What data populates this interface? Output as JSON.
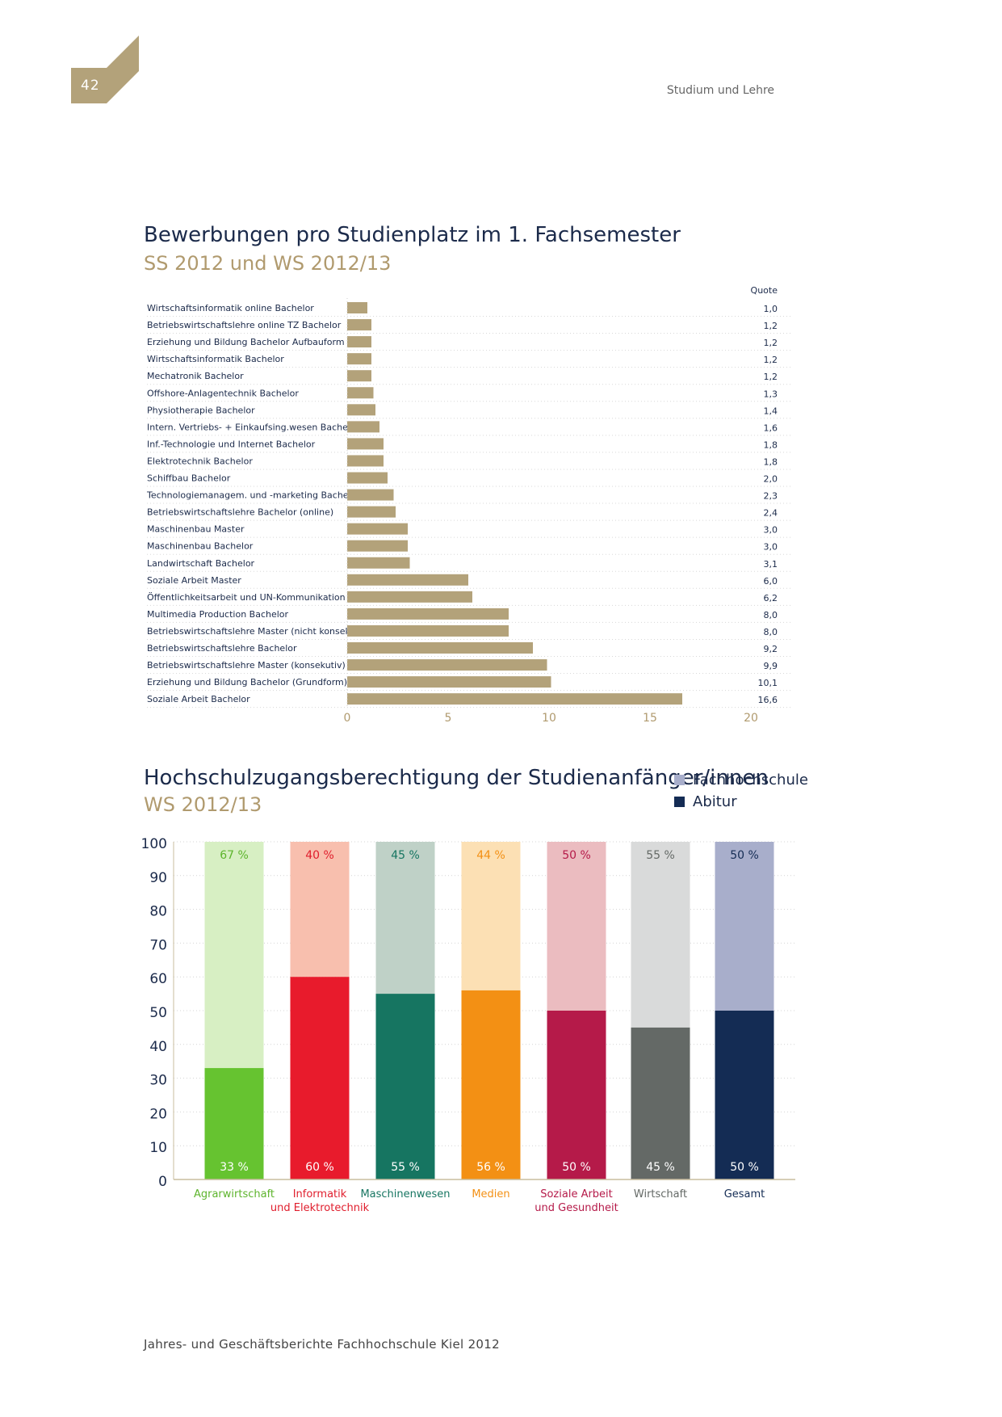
{
  "header": {
    "page_number": "42",
    "section": "Studium und Lehre"
  },
  "colors": {
    "gold": "#b09a6e",
    "navy": "#1b2a4a"
  },
  "footer": {
    "text": "Jahres- und Geschäftsberichte Fachhochschule Kiel 2012"
  },
  "legend": {
    "items": [
      {
        "label": "Fachhochschule",
        "color": "#a8aecb"
      },
      {
        "label": "Abitur",
        "color": "#142c54"
      }
    ]
  },
  "chart_data": [
    {
      "type": "bar",
      "orientation": "horizontal",
      "title": "Bewerbungen pro Studienplatz im 1. Fachsemester",
      "subtitle": "SS 2012 und WS 2012/13",
      "value_column_label": "Quote",
      "xlim": [
        0,
        20
      ],
      "xticks": [
        "0",
        "5",
        "10",
        "15",
        "20"
      ],
      "grid": true,
      "bar_color": "#b3a27a",
      "categories": [
        "Wirtschaftsinformatik online Bachelor",
        "Betriebswirtschaftslehre online TZ Bachelor",
        "Erziehung und Bildung Bachelor Aufbauform",
        "Wirtschaftsinformatik Bachelor",
        "Mechatronik Bachelor",
        "Offshore-Anlagentechnik Bachelor",
        "Physiotherapie Bachelor",
        "Intern. Vertriebs- + Einkaufsing.wesen Bachelor",
        "Inf.-Technologie und Internet Bachelor",
        "Elektrotechnik Bachelor",
        "Schiffbau Bachelor",
        "Technologiemanagem. und -marketing Bachelor",
        "Betriebswirtschaftslehre Bachelor (online)",
        "Maschinenbau Master",
        "Maschinenbau Bachelor",
        "Landwirtschaft Bachelor",
        "Soziale Arbeit Master",
        "Öffentlichkeitsarbeit und UN-Kommunikation BA",
        "Multimedia Production Bachelor",
        "Betriebswirtschaftslehre Master (nicht konsek.)",
        "Betriebswirtschaftslehre Bachelor",
        "Betriebswirtschaftslehre Master (konsekutiv)",
        "Erziehung und Bildung Bachelor (Grundform)",
        "Soziale Arbeit Bachelor"
      ],
      "values": [
        1.0,
        1.2,
        1.2,
        1.2,
        1.2,
        1.3,
        1.4,
        1.6,
        1.8,
        1.8,
        2.0,
        2.3,
        2.4,
        3.0,
        3.0,
        3.1,
        6.0,
        6.2,
        8.0,
        8.0,
        9.2,
        9.9,
        10.1,
        16.6
      ],
      "value_labels": [
        "1,0",
        "1,2",
        "1,2",
        "1,2",
        "1,2",
        "1,3",
        "1,4",
        "1,6",
        "1,8",
        "1,8",
        "2,0",
        "2,3",
        "2,4",
        "3,0",
        "3,0",
        "3,1",
        "6,0",
        "6,2",
        "8,0",
        "8,0",
        "9,2",
        "9,9",
        "10,1",
        "16,6"
      ]
    },
    {
      "type": "bar",
      "stacked": true,
      "title": "Hochschulzugangsberechtigung der Studienanfänger/innen",
      "subtitle": "WS 2012/13",
      "ylim": [
        0,
        100
      ],
      "yticks": [
        "0",
        "10",
        "20",
        "30",
        "40",
        "50",
        "60",
        "70",
        "80",
        "90",
        "100"
      ],
      "grid": true,
      "legend_position": "top-right",
      "categories": [
        {
          "lines": [
            "Agrarwirtschaft"
          ],
          "abitur": 33,
          "fachhochschule": 67,
          "dark": "#66c330",
          "light": "#d7efc3",
          "label_color": "#5db42c",
          "top_text": "#5db42c",
          "bottom_text": "#ffffff"
        },
        {
          "lines": [
            "Informatik",
            "und Elektrotechnik"
          ],
          "abitur": 60,
          "fachhochschule": 40,
          "dark": "#e81b2c",
          "light": "#f8bfae",
          "label_color": "#e01d2c",
          "top_text": "#e01d2c",
          "bottom_text": "#ffffff"
        },
        {
          "lines": [
            "Maschinenwesen"
          ],
          "abitur": 55,
          "fachhochschule": 45,
          "dark": "#167561",
          "light": "#bfd1c7",
          "label_color": "#167561",
          "top_text": "#167561",
          "bottom_text": "#ffffff"
        },
        {
          "lines": [
            "Medien"
          ],
          "abitur": 56,
          "fachhochschule": 44,
          "dark": "#f39014",
          "light": "#fce0b4",
          "label_color": "#f39014",
          "top_text": "#f39014",
          "bottom_text": "#ffffff"
        },
        {
          "lines": [
            "Soziale Arbeit",
            "und Gesundheit"
          ],
          "abitur": 50,
          "fachhochschule": 50,
          "dark": "#b51a49",
          "light": "#ebbcc0",
          "label_color": "#b51a49",
          "top_text": "#b51a49",
          "bottom_text": "#ffffff"
        },
        {
          "lines": [
            "Wirtschaft"
          ],
          "abitur": 45,
          "fachhochschule": 55,
          "dark": "#646966",
          "light": "#d9dada",
          "label_color": "#646966",
          "top_text": "#646966",
          "bottom_text": "#ffffff"
        },
        {
          "lines": [
            "Gesamt"
          ],
          "abitur": 50,
          "fachhochschule": 50,
          "dark": "#142c54",
          "light": "#a8aecb",
          "label_color": "#142c54",
          "top_text": "#142c54",
          "bottom_text": "#ffffff"
        }
      ],
      "value_labels_top": [
        "67 %",
        "40 %",
        "45 %",
        "44 %",
        "50 %",
        "55 %",
        "50 %"
      ],
      "value_labels_bottom": [
        "33 %",
        "60 %",
        "55 %",
        "56 %",
        "50 %",
        "45 %",
        "50 %"
      ]
    }
  ]
}
